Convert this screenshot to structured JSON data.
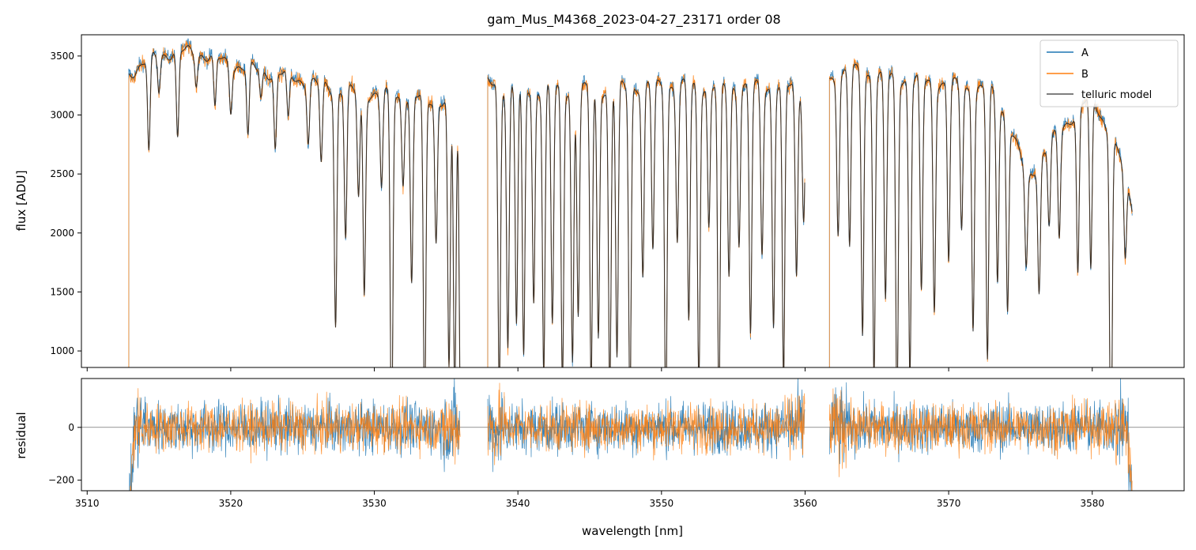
{
  "chart_data": [
    {
      "type": "line",
      "title": "gam_Mus_M4368_2023-04-27_23171  order 08",
      "xlabel": "",
      "ylabel": "flux [ADU]",
      "xlim": [
        3509.6,
        3586.4
      ],
      "ylim": [
        860,
        3680
      ],
      "x_ticks": [
        3510,
        3520,
        3530,
        3540,
        3550,
        3560,
        3570,
        3580
      ],
      "x_tick_labels_visible": false,
      "y_ticks": [
        1000,
        1500,
        2000,
        2500,
        3000,
        3500
      ],
      "y_tick_labels": [
        "1000",
        "1500",
        "2000",
        "2500",
        "3000",
        "3500"
      ],
      "grid": false,
      "legend_position": "top-right",
      "segments": [
        [
          3512.9,
          3536.0
        ],
        [
          3537.9,
          3560.0
        ],
        [
          3561.7,
          3582.8
        ]
      ],
      "continuum_nodes": {
        "x": [
          3512.9,
          3514,
          3516,
          3518,
          3520,
          3522,
          3524,
          3526,
          3528,
          3530,
          3532,
          3534,
          3536,
          3537.9,
          3540,
          3545,
          3550,
          3555,
          3560,
          3561.7,
          3563,
          3566,
          3570,
          3573,
          3574,
          3575.5,
          3577,
          3579,
          3580,
          3581,
          3582,
          3582.8
        ],
        "y": [
          3350,
          3450,
          3540,
          3520,
          3430,
          3380,
          3330,
          3260,
          3200,
          3180,
          3150,
          3130,
          3100,
          3270,
          3220,
          3210,
          3250,
          3240,
          3230,
          3300,
          3380,
          3310,
          3260,
          3200,
          3000,
          2450,
          2750,
          3050,
          3150,
          2900,
          2600,
          2200
        ]
      },
      "absorption_lines": {
        "center": [
          3514.3,
          3515.0,
          3516.3,
          3517.6,
          3518.9,
          3520.0,
          3521.2,
          3522.1,
          3523.1,
          3524.0,
          3525.4,
          3526.3,
          3527.3,
          3528.0,
          3528.9,
          3529.3,
          3530.5,
          3531.2,
          3532.0,
          3532.6,
          3533.5,
          3534.3,
          3535.2,
          3535.6,
          3536.0,
          3538.7,
          3539.3,
          3539.9,
          3540.4,
          3541.1,
          3541.8,
          3542.4,
          3543.1,
          3543.8,
          3544.2,
          3545.1,
          3545.6,
          3546.4,
          3546.9,
          3547.8,
          3548.7,
          3549.4,
          3550.3,
          3551.1,
          3551.9,
          3552.6,
          3553.3,
          3554.0,
          3554.7,
          3555.4,
          3556.2,
          3557.0,
          3557.8,
          3558.5,
          3559.4,
          3559.9,
          3562.3,
          3563.1,
          3564.0,
          3564.8,
          3565.6,
          3566.4,
          3567.3,
          3568.1,
          3569.0,
          3570.0,
          3570.9,
          3571.7,
          3572.7,
          3573.4,
          3574.1,
          3575.4,
          3576.3,
          3577.0,
          3577.7,
          3579.0,
          3579.9,
          3581.3,
          3582.3
        ],
        "depth": [
          800,
          300,
          750,
          250,
          450,
          380,
          600,
          240,
          650,
          400,
          500,
          680,
          2000,
          1250,
          900,
          1700,
          800,
          3000,
          700,
          1600,
          2800,
          1200,
          2300,
          2500,
          2600,
          2600,
          2200,
          2000,
          2300,
          1800,
          2400,
          2000,
          2500,
          2300,
          1900,
          2500,
          2100,
          2600,
          2300,
          2700,
          1600,
          1400,
          2800,
          1300,
          2000,
          2500,
          1200,
          2800,
          1600,
          1300,
          2100,
          1400,
          2000,
          2500,
          1600,
          1100,
          1300,
          1500,
          2200,
          2500,
          1900,
          2800,
          2500,
          1800,
          1900,
          1500,
          1200,
          2000,
          2300,
          1500,
          1600,
          800,
          1100,
          700,
          900,
          1400,
          1500,
          2800,
          700
        ]
      },
      "series": [
        {
          "name": "A",
          "color": "#1f77b4"
        },
        {
          "name": "B",
          "color": "#ff7f0e"
        },
        {
          "name": "telluric model",
          "color": "#555555"
        }
      ]
    },
    {
      "type": "line",
      "title": "",
      "xlabel": "wavelength [nm]",
      "ylabel": "residual",
      "xlim": [
        3509.6,
        3586.4
      ],
      "ylim": [
        -240,
        185
      ],
      "x_ticks": [
        3510,
        3520,
        3530,
        3540,
        3550,
        3560,
        3570,
        3580
      ],
      "x_tick_labels": [
        "3510",
        "3520",
        "3530",
        "3540",
        "3550",
        "3560",
        "3570",
        "3580"
      ],
      "y_ticks": [
        -200,
        0
      ],
      "y_tick_labels": [
        "−200",
        "0"
      ],
      "zero_line": 0,
      "grid": false,
      "noise_amplitude": {
        "A": 70,
        "B": 65
      },
      "series": [
        {
          "name": "A",
          "color": "#1f77b4"
        },
        {
          "name": "B",
          "color": "#ff7f0e"
        }
      ]
    }
  ]
}
